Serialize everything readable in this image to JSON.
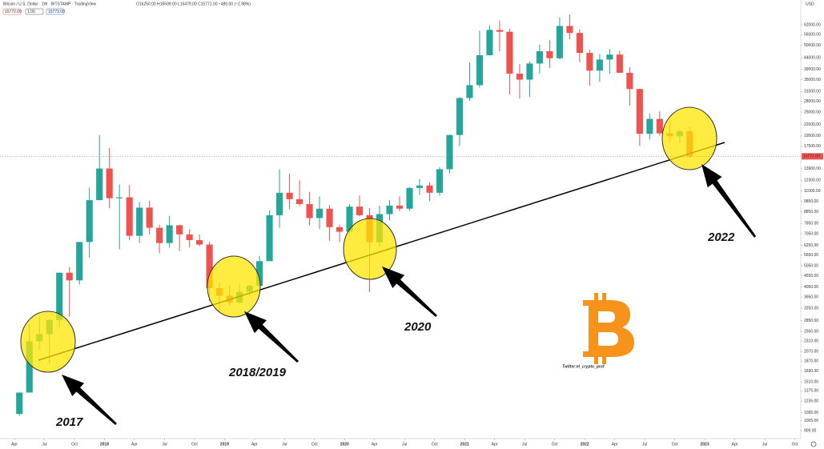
{
  "chart_data": {
    "type": "candlestick",
    "title": "Bitcoin / U.S. Dollar · 1W · BITSTAMP · TradingView",
    "ohlc_text": "O16250.00 H16509.00 L15479.00 C15771.00 −485.00 (−2.98%)",
    "inputs": [
      "15772.00",
      "1.00",
      "15773.00"
    ],
    "currency": "USD",
    "log_y": true,
    "up_color": "#26a69a",
    "down_color": "#ef5350",
    "x": [
      "2017-04",
      "2017-05",
      "2017-06",
      "2017-07",
      "2017-08",
      "2017-09",
      "2017-10",
      "2017-11",
      "2017-12",
      "2018-01",
      "2018-02",
      "2018-03",
      "2018-04",
      "2018-05",
      "2018-06",
      "2018-07",
      "2018-08",
      "2018-09",
      "2018-10",
      "2018-11",
      "2018-12",
      "2019-01",
      "2019-02",
      "2019-03",
      "2019-04",
      "2019-05",
      "2019-06",
      "2019-07",
      "2019-08",
      "2019-09",
      "2019-10",
      "2019-11",
      "2019-12",
      "2020-01",
      "2020-02",
      "2020-03",
      "2020-04",
      "2020-05",
      "2020-06",
      "2020-07",
      "2020-08",
      "2020-09",
      "2020-10",
      "2020-11",
      "2020-12",
      "2021-01",
      "2021-02",
      "2021-03",
      "2021-04",
      "2021-05",
      "2021-06",
      "2021-07",
      "2021-08",
      "2021-09",
      "2021-10",
      "2021-11",
      "2021-12",
      "2022-01",
      "2022-02",
      "2022-03",
      "2022-04",
      "2022-05",
      "2022-06",
      "2022-07",
      "2022-08",
      "2022-09",
      "2022-10",
      "2022-11"
    ],
    "open": [
      1080,
      1350,
      2300,
      2480,
      2870,
      4700,
      4340,
      6470,
      10000,
      13900,
      10200,
      10300,
      6900,
      9250,
      7500,
      6400,
      7700,
      7000,
      6600,
      6300,
      4000,
      3700,
      3450,
      3850,
      4100,
      5300,
      8550,
      10800,
      10100,
      9600,
      8300,
      9150,
      7550,
      7200,
      9350,
      8550,
      6450,
      8650,
      9450,
      9150,
      11350,
      11650,
      10800,
      13800,
      19700,
      28950,
      33100,
      45200,
      58800,
      57700,
      37300,
      35050,
      41450,
      47100,
      43800,
      61300,
      57000,
      46300,
      38500,
      43200,
      45500,
      37650,
      31800,
      19950,
      23300,
      20050,
      19450,
      20500
    ],
    "high": [
      1350,
      2760,
      3000,
      2900,
      4700,
      4980,
      6470,
      11400,
      19700,
      17200,
      11800,
      11700,
      9800,
      9950,
      7750,
      8500,
      7750,
      7400,
      7000,
      6500,
      4250,
      4100,
      4200,
      4150,
      5600,
      9000,
      13800,
      13200,
      12300,
      10900,
      10400,
      9500,
      7750,
      9600,
      10500,
      9200,
      9450,
      10000,
      10400,
      11450,
      12450,
      12050,
      14100,
      19800,
      29300,
      41950,
      58350,
      61800,
      64850,
      59500,
      41300,
      42300,
      50500,
      52900,
      67000,
      69000,
      59100,
      47950,
      45800,
      48200,
      47400,
      39900,
      31950,
      24650,
      25200,
      22800,
      20950,
      21450
    ],
    "low": [
      1060,
      1350,
      2100,
      1830,
      2670,
      2970,
      4150,
      5500,
      10000,
      9200,
      6000,
      6600,
      6400,
      7000,
      5750,
      6100,
      5880,
      6100,
      6200,
      3500,
      3150,
      3350,
      3400,
      3700,
      4050,
      5300,
      7500,
      9100,
      9400,
      7700,
      7400,
      6550,
      6450,
      6850,
      8450,
      3850,
      6150,
      8100,
      8900,
      8950,
      10550,
      9900,
      10450,
      13200,
      17600,
      28100,
      32300,
      45000,
      47000,
      30000,
      28800,
      29300,
      37300,
      39600,
      43300,
      53300,
      42000,
      32900,
      34300,
      37200,
      37600,
      26700,
      17600,
      18800,
      19550,
      18150,
      18200,
      15500
    ],
    "close": [
      1350,
      2300,
      2480,
      2870,
      4700,
      4340,
      6470,
      10000,
      13900,
      10200,
      10300,
      6900,
      9250,
      7500,
      6400,
      7700,
      7000,
      6600,
      6300,
      4000,
      3700,
      3450,
      3850,
      4100,
      5300,
      8550,
      10800,
      10100,
      9600,
      8300,
      9150,
      7550,
      7200,
      9350,
      8550,
      6450,
      8650,
      9450,
      9150,
      11350,
      11650,
      10800,
      13800,
      19700,
      28950,
      33100,
      45200,
      58800,
      57700,
      37300,
      35050,
      41450,
      47100,
      43800,
      61300,
      57000,
      46300,
      38500,
      43200,
      45500,
      37650,
      31800,
      19950,
      23300,
      20050,
      19450,
      20500,
      15771
    ],
    "last_price": {
      "value": 15771,
      "label": "15771.00"
    },
    "ylim": [
      836,
      80300
    ],
    "yticks": [
      {
        "value": 62000,
        "label": "62000.00"
      },
      {
        "value": 56000,
        "label": "56000.00"
      },
      {
        "value": 50000,
        "label": "50000.00"
      },
      {
        "value": 44000,
        "label": "44000.00"
      },
      {
        "value": 39000,
        "label": "39000.00"
      },
      {
        "value": 35000,
        "label": "35000.00"
      },
      {
        "value": 31000,
        "label": "31000.00"
      },
      {
        "value": 28000,
        "label": "28000.00"
      },
      {
        "value": 25000,
        "label": "25000.00"
      },
      {
        "value": 22000,
        "label": "22000.00"
      },
      {
        "value": 19500,
        "label": "19500.00"
      },
      {
        "value": 17500,
        "label": "17500.00"
      },
      {
        "value": 13900,
        "label": "13900.00"
      },
      {
        "value": 12300,
        "label": "12300.00"
      },
      {
        "value": 11000,
        "label": "11000.00"
      },
      {
        "value": 9850,
        "label": "9850.00"
      },
      {
        "value": 8850,
        "label": "8850.00"
      },
      {
        "value": 7850,
        "label": "7850.00"
      },
      {
        "value": 7050,
        "label": "7050.00"
      },
      {
        "value": 6250,
        "label": "6250.00"
      },
      {
        "value": 5650,
        "label": "5650.00"
      },
      {
        "value": 5050,
        "label": "5050.00"
      },
      {
        "value": 4550,
        "label": "4550.00"
      },
      {
        "value": 4050,
        "label": "4050.00"
      },
      {
        "value": 3650,
        "label": "3650.00"
      },
      {
        "value": 3250,
        "label": "3250.00"
      },
      {
        "value": 2850,
        "label": "2850.00"
      },
      {
        "value": 2550,
        "label": "2550.00"
      },
      {
        "value": 2310,
        "label": "2310.00"
      },
      {
        "value": 2070,
        "label": "2070.00"
      },
      {
        "value": 1870,
        "label": "1870.00"
      },
      {
        "value": 1690,
        "label": "1690.00"
      },
      {
        "value": 1510,
        "label": "1510.00"
      },
      {
        "value": 1375,
        "label": "1375.00"
      },
      {
        "value": 1235,
        "label": "1235.00"
      },
      {
        "value": 1095,
        "label": "1095.00"
      },
      {
        "value": 1005,
        "label": "1005.00"
      },
      {
        "value": 909,
        "label": "909.00"
      }
    ],
    "xlim": [
      2017.13,
      2023.8
    ],
    "xticks": [
      {
        "value": 2017.25,
        "label": "Apr"
      },
      {
        "value": 2017.5,
        "label": "Jul"
      },
      {
        "value": 2017.75,
        "label": "Oct"
      },
      2018,
      {
        "value": 2018.25,
        "label": "Apr"
      },
      {
        "value": 2018.5,
        "label": "Jul"
      },
      {
        "value": 2018.75,
        "label": "Oct"
      },
      2019,
      {
        "value": 2019.25,
        "label": "Apr"
      },
      {
        "value": 2019.5,
        "label": "Jul"
      },
      {
        "value": 2019.75,
        "label": "Oct"
      },
      2020,
      {
        "value": 2020.25,
        "label": "Apr"
      },
      {
        "value": 2020.5,
        "label": "Jul"
      },
      {
        "value": 2020.75,
        "label": "Oct"
      },
      2021,
      {
        "value": 2021.25,
        "label": "Apr"
      },
      {
        "value": 2021.5,
        "label": "Jul"
      },
      {
        "value": 2021.75,
        "label": "Oct"
      },
      2022,
      {
        "value": 2022.25,
        "label": "Apr"
      },
      {
        "value": 2022.5,
        "label": "Jul"
      },
      {
        "value": 2022.75,
        "label": "Oct"
      },
      2023,
      {
        "value": 2023.25,
        "label": "Apr"
      },
      {
        "value": 2023.5,
        "label": "Jul"
      },
      {
        "value": 2023.75,
        "label": "Oct"
      }
    ],
    "annotations": [
      "2017",
      "2018/2019",
      "2020",
      "2022"
    ],
    "credit": "Twitter:el_crypto_prof"
  }
}
